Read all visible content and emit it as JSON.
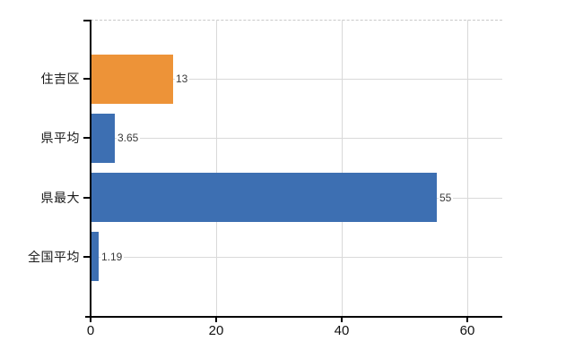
{
  "chart_data": {
    "type": "bar",
    "orientation": "horizontal",
    "title": "",
    "categories": [
      "住吉区",
      "県平均",
      "県最大",
      "全国平均"
    ],
    "values": [
      13,
      3.65,
      55,
      1.19
    ],
    "value_labels": [
      "13",
      "3.65",
      "55",
      "1.19"
    ],
    "bar_colors": [
      "#ed9338",
      "#3d6fb2",
      "#3d6fb2",
      "#3d6fb2"
    ],
    "xlim": [
      0,
      65.7
    ],
    "xticks": [
      0,
      20,
      40,
      60
    ],
    "xtick_labels": [
      "0",
      "20",
      "40",
      "60"
    ],
    "grid": true,
    "legend": "none",
    "colors": {
      "accent_orange": "#ed9338",
      "accent_blue": "#3d6fb2",
      "gridline": "#d9d9d9",
      "axis": "#000000",
      "value_label_text": "#3a3a3a",
      "tick_label_text": "#111111",
      "background": "#ffffff"
    }
  }
}
